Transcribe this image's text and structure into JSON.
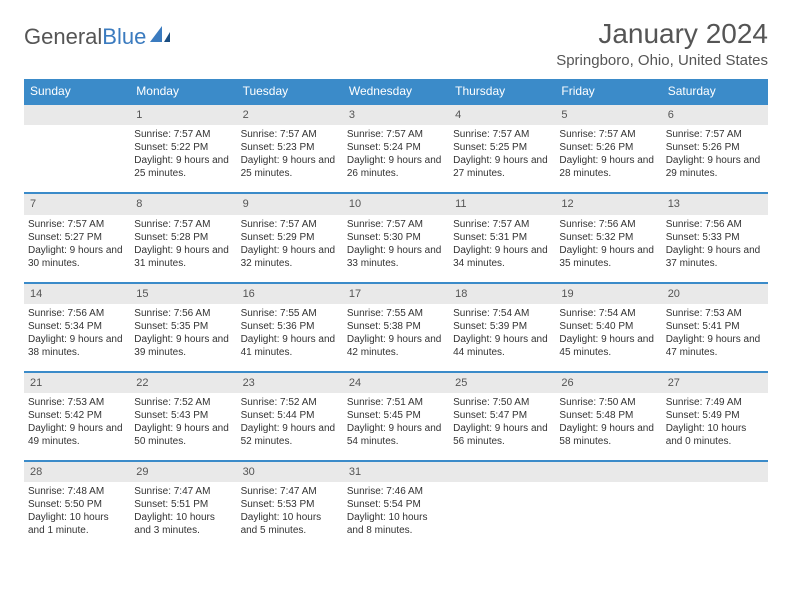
{
  "brand": {
    "part1": "General",
    "part2": "Blue"
  },
  "title": "January 2024",
  "location": "Springboro, Ohio, United States",
  "colors": {
    "header_bg": "#3b8bc9",
    "header_text": "#ffffff",
    "daynum_bg": "#e9e9e9",
    "border": "#3b8bc9",
    "text": "#333333",
    "muted": "#555555"
  },
  "dayHeaders": [
    "Sunday",
    "Monday",
    "Tuesday",
    "Wednesday",
    "Thursday",
    "Friday",
    "Saturday"
  ],
  "weeks": [
    {
      "nums": [
        "",
        "1",
        "2",
        "3",
        "4",
        "5",
        "6"
      ],
      "cells": [
        [],
        [
          "Sunrise: 7:57 AM",
          "Sunset: 5:22 PM",
          "Daylight: 9 hours and 25 minutes."
        ],
        [
          "Sunrise: 7:57 AM",
          "Sunset: 5:23 PM",
          "Daylight: 9 hours and 25 minutes."
        ],
        [
          "Sunrise: 7:57 AM",
          "Sunset: 5:24 PM",
          "Daylight: 9 hours and 26 minutes."
        ],
        [
          "Sunrise: 7:57 AM",
          "Sunset: 5:25 PM",
          "Daylight: 9 hours and 27 minutes."
        ],
        [
          "Sunrise: 7:57 AM",
          "Sunset: 5:26 PM",
          "Daylight: 9 hours and 28 minutes."
        ],
        [
          "Sunrise: 7:57 AM",
          "Sunset: 5:26 PM",
          "Daylight: 9 hours and 29 minutes."
        ]
      ]
    },
    {
      "nums": [
        "7",
        "8",
        "9",
        "10",
        "11",
        "12",
        "13"
      ],
      "cells": [
        [
          "Sunrise: 7:57 AM",
          "Sunset: 5:27 PM",
          "Daylight: 9 hours and 30 minutes."
        ],
        [
          "Sunrise: 7:57 AM",
          "Sunset: 5:28 PM",
          "Daylight: 9 hours and 31 minutes."
        ],
        [
          "Sunrise: 7:57 AM",
          "Sunset: 5:29 PM",
          "Daylight: 9 hours and 32 minutes."
        ],
        [
          "Sunrise: 7:57 AM",
          "Sunset: 5:30 PM",
          "Daylight: 9 hours and 33 minutes."
        ],
        [
          "Sunrise: 7:57 AM",
          "Sunset: 5:31 PM",
          "Daylight: 9 hours and 34 minutes."
        ],
        [
          "Sunrise: 7:56 AM",
          "Sunset: 5:32 PM",
          "Daylight: 9 hours and 35 minutes."
        ],
        [
          "Sunrise: 7:56 AM",
          "Sunset: 5:33 PM",
          "Daylight: 9 hours and 37 minutes."
        ]
      ]
    },
    {
      "nums": [
        "14",
        "15",
        "16",
        "17",
        "18",
        "19",
        "20"
      ],
      "cells": [
        [
          "Sunrise: 7:56 AM",
          "Sunset: 5:34 PM",
          "Daylight: 9 hours and 38 minutes."
        ],
        [
          "Sunrise: 7:56 AM",
          "Sunset: 5:35 PM",
          "Daylight: 9 hours and 39 minutes."
        ],
        [
          "Sunrise: 7:55 AM",
          "Sunset: 5:36 PM",
          "Daylight: 9 hours and 41 minutes."
        ],
        [
          "Sunrise: 7:55 AM",
          "Sunset: 5:38 PM",
          "Daylight: 9 hours and 42 minutes."
        ],
        [
          "Sunrise: 7:54 AM",
          "Sunset: 5:39 PM",
          "Daylight: 9 hours and 44 minutes."
        ],
        [
          "Sunrise: 7:54 AM",
          "Sunset: 5:40 PM",
          "Daylight: 9 hours and 45 minutes."
        ],
        [
          "Sunrise: 7:53 AM",
          "Sunset: 5:41 PM",
          "Daylight: 9 hours and 47 minutes."
        ]
      ]
    },
    {
      "nums": [
        "21",
        "22",
        "23",
        "24",
        "25",
        "26",
        "27"
      ],
      "cells": [
        [
          "Sunrise: 7:53 AM",
          "Sunset: 5:42 PM",
          "Daylight: 9 hours and 49 minutes."
        ],
        [
          "Sunrise: 7:52 AM",
          "Sunset: 5:43 PM",
          "Daylight: 9 hours and 50 minutes."
        ],
        [
          "Sunrise: 7:52 AM",
          "Sunset: 5:44 PM",
          "Daylight: 9 hours and 52 minutes."
        ],
        [
          "Sunrise: 7:51 AM",
          "Sunset: 5:45 PM",
          "Daylight: 9 hours and 54 minutes."
        ],
        [
          "Sunrise: 7:50 AM",
          "Sunset: 5:47 PM",
          "Daylight: 9 hours and 56 minutes."
        ],
        [
          "Sunrise: 7:50 AM",
          "Sunset: 5:48 PM",
          "Daylight: 9 hours and 58 minutes."
        ],
        [
          "Sunrise: 7:49 AM",
          "Sunset: 5:49 PM",
          "Daylight: 10 hours and 0 minutes."
        ]
      ]
    },
    {
      "nums": [
        "28",
        "29",
        "30",
        "31",
        "",
        "",
        ""
      ],
      "cells": [
        [
          "Sunrise: 7:48 AM",
          "Sunset: 5:50 PM",
          "Daylight: 10 hours and 1 minute."
        ],
        [
          "Sunrise: 7:47 AM",
          "Sunset: 5:51 PM",
          "Daylight: 10 hours and 3 minutes."
        ],
        [
          "Sunrise: 7:47 AM",
          "Sunset: 5:53 PM",
          "Daylight: 10 hours and 5 minutes."
        ],
        [
          "Sunrise: 7:46 AM",
          "Sunset: 5:54 PM",
          "Daylight: 10 hours and 8 minutes."
        ],
        [],
        [],
        []
      ]
    }
  ]
}
